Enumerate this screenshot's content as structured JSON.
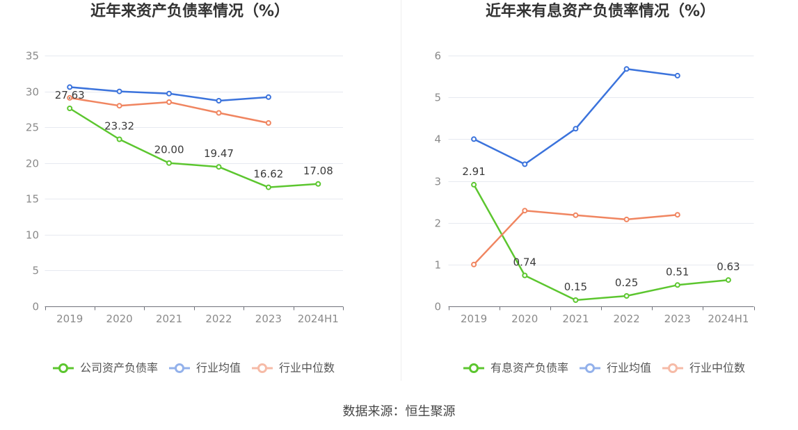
{
  "chart_data": [
    {
      "type": "line",
      "title": "近年来资产负债率情况（%）",
      "categories": [
        "2019",
        "2020",
        "2021",
        "2022",
        "2023",
        "2024H1"
      ],
      "ylim": [
        0,
        35
      ],
      "yticks": [
        0,
        5,
        10,
        15,
        20,
        25,
        30,
        35
      ],
      "grid": true,
      "legend_position": "bottom",
      "series": [
        {
          "name": "公司资产负债率",
          "color": "#5cc62f",
          "values": [
            27.63,
            23.32,
            20.0,
            19.47,
            16.62,
            17.08
          ],
          "data_labels": [
            "27.63",
            "23.32",
            "20.00",
            "19.47",
            "16.62",
            "17.08"
          ]
        },
        {
          "name": "行业均值",
          "color": "#3b73dc",
          "values": [
            30.6,
            30.0,
            29.7,
            28.7,
            29.2,
            null
          ]
        },
        {
          "name": "行业中位数",
          "color": "#f08560",
          "values": [
            29.1,
            28.0,
            28.5,
            27.0,
            25.6,
            null
          ]
        }
      ]
    },
    {
      "type": "line",
      "title": "近年来有息资产负债率情况（%）",
      "categories": [
        "2019",
        "2020",
        "2021",
        "2022",
        "2023",
        "2024H1"
      ],
      "ylim": [
        0,
        6
      ],
      "yticks": [
        0,
        1,
        2,
        3,
        4,
        5,
        6
      ],
      "grid": true,
      "legend_position": "bottom",
      "series": [
        {
          "name": "有息资产负债率",
          "color": "#5cc62f",
          "values": [
            2.91,
            0.74,
            0.15,
            0.25,
            0.51,
            0.63
          ],
          "data_labels": [
            "2.91",
            "0.74",
            "0.15",
            "0.25",
            "0.51",
            "0.63"
          ]
        },
        {
          "name": "行业均值",
          "color": "#3b73dc",
          "values": [
            4.0,
            3.4,
            4.25,
            5.68,
            5.52,
            null
          ]
        },
        {
          "name": "行业中位数",
          "color": "#f08560",
          "values": [
            1.0,
            2.29,
            2.18,
            2.08,
            2.19,
            null
          ]
        }
      ]
    }
  ],
  "footer": {
    "source": "数据来源：恒生聚源"
  }
}
